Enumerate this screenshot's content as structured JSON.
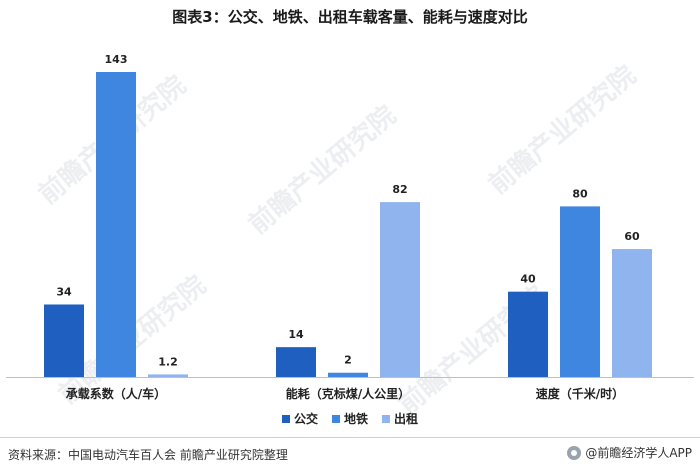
{
  "title": "图表3：公交、地铁、出租车载客量、能耗与速度对比",
  "source": "资料来源：中国电动汽车百人会 前瞻产业研究院整理",
  "brand": "@前瞻经济学人APP",
  "watermark": "前瞻产业研究院",
  "colors": {
    "公交": "#1f5fbf",
    "地铁": "#3f86e0",
    "出租": "#8fb4ee",
    "axis": "#bfbfbf"
  },
  "chart_data": {
    "type": "bar",
    "categories": [
      "承载系数（人/车）",
      "能耗（克标煤/人公里）",
      "速度（千米/时）"
    ],
    "series": [
      {
        "name": "公交",
        "values": [
          34,
          14,
          40
        ],
        "labels": [
          "34",
          "14",
          "40"
        ]
      },
      {
        "name": "地铁",
        "values": [
          143,
          2,
          80
        ],
        "labels": [
          "143",
          "2",
          "80"
        ]
      },
      {
        "name": "出租",
        "values": [
          1.2,
          82,
          60
        ],
        "labels": [
          "1.2",
          "82",
          "60"
        ]
      }
    ],
    "ylim": [
      0,
      143
    ],
    "grid": false,
    "legend": "bottom"
  }
}
